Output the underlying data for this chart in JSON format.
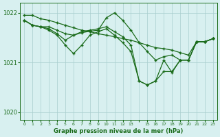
{
  "background_color": "#d8f0f0",
  "line_color": "#1a6b1a",
  "grid_color": "#a8cece",
  "xlabel": "Graphe pression niveau de la mer (hPa)",
  "ylim": [
    1019.85,
    1022.2
  ],
  "yticks": [
    1020,
    1021,
    1022
  ],
  "xtick_labels": [
    "0",
    "1",
    "2",
    "3",
    "4",
    "5",
    "6",
    "7",
    "8",
    "9",
    "10",
    "11",
    "12",
    "13",
    "",
    "15",
    "16",
    "17",
    "18",
    "19",
    "20",
    "21",
    "22",
    "23"
  ],
  "series": {
    "line1": [
      1021.95,
      1021.95,
      1021.88,
      1021.85,
      1021.8,
      1021.75,
      1021.7,
      1021.65,
      1021.62,
      1021.58,
      1021.55,
      1021.52,
      1021.48,
      1021.45,
      1021.4,
      1021.35,
      1021.3,
      1021.28,
      1021.25,
      1021.2,
      1021.15,
      1021.42,
      1021.42,
      1021.48
    ],
    "line2": [
      1021.85,
      1021.75,
      1021.72,
      1021.72,
      1021.65,
      1021.58,
      1021.55,
      1021.6,
      1021.63,
      1021.65,
      1021.9,
      1022.0,
      1021.85,
      1021.65,
      1021.4,
      1021.22,
      1021.05,
      1021.12,
      1021.15,
      1021.05,
      1021.05,
      1021.42,
      1021.42,
      1021.48
    ],
    "line3": [
      1021.85,
      1021.75,
      1021.72,
      1021.68,
      1021.58,
      1021.45,
      1021.55,
      1021.62,
      1021.65,
      1021.68,
      1021.72,
      1021.62,
      1021.52,
      1021.35,
      1020.63,
      1020.55,
      1020.63,
      1021.05,
      1020.8,
      1021.05,
      1021.05,
      1021.42,
      1021.42,
      1021.48
    ],
    "line4": [
      1021.85,
      1021.75,
      1021.72,
      1021.65,
      1021.55,
      1021.35,
      1021.18,
      1021.35,
      1021.55,
      1021.62,
      1021.68,
      1021.55,
      1021.4,
      1021.22,
      1020.63,
      1020.55,
      1020.63,
      1020.82,
      1020.82,
      1021.05,
      1021.05,
      1021.42,
      1021.42,
      1021.48
    ]
  }
}
